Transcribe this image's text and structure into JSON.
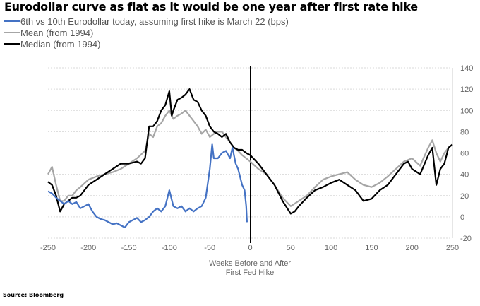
{
  "chart_data": {
    "type": "line",
    "title": "Eurodollar curve as flat as it would be one year after first rate hike",
    "xlabel": "Weeks Before and After\nFirst Fed Hike",
    "xlabel_lines": [
      "Weeks Before and After",
      "First Fed Hike"
    ],
    "ylabel": "",
    "xlim": [
      -250,
      250
    ],
    "ylim": [
      -20,
      140
    ],
    "xticks": [
      -250,
      -200,
      -150,
      -100,
      -50,
      0,
      50,
      100,
      150,
      200,
      250
    ],
    "yticks": [
      -20,
      0,
      20,
      40,
      60,
      80,
      100,
      120,
      140
    ],
    "grid": true,
    "legend_position": "top-left",
    "source": "Source:  Bloomberg",
    "series": [
      {
        "name": "6th vs 10th Eurodollar today, assuming first hike is March 22 (bps)",
        "color": "#4472c4",
        "x": [
          -250,
          -245,
          -240,
          -235,
          -230,
          -225,
          -220,
          -215,
          -210,
          -205,
          -200,
          -195,
          -190,
          -185,
          -180,
          -175,
          -170,
          -165,
          -160,
          -155,
          -150,
          -145,
          -140,
          -135,
          -130,
          -125,
          -120,
          -115,
          -110,
          -105,
          -100,
          -95,
          -90,
          -85,
          -80,
          -75,
          -70,
          -65,
          -60,
          -55,
          -50,
          -47,
          -45,
          -40,
          -35,
          -30,
          -25,
          -22,
          -18,
          -15,
          -10,
          -7,
          -5,
          -4
        ],
        "y": [
          24,
          22,
          18,
          15,
          12,
          15,
          12,
          14,
          8,
          10,
          12,
          5,
          0,
          -2,
          -3,
          -5,
          -7,
          -6,
          -8,
          -10,
          -5,
          -3,
          -1,
          -5,
          -3,
          0,
          5,
          8,
          5,
          10,
          25,
          10,
          8,
          10,
          5,
          8,
          5,
          8,
          10,
          18,
          45,
          68,
          55,
          55,
          60,
          62,
          55,
          65,
          50,
          45,
          30,
          25,
          10,
          -5
        ]
      },
      {
        "name": "Mean (from 1994)",
        "color": "#a6a6a6",
        "x": [
          -250,
          -245,
          -240,
          -235,
          -230,
          -225,
          -220,
          -215,
          -210,
          -200,
          -190,
          -180,
          -170,
          -160,
          -150,
          -140,
          -130,
          -125,
          -120,
          -115,
          -110,
          -105,
          -100,
          -95,
          -90,
          -85,
          -80,
          -75,
          -70,
          -65,
          -60,
          -55,
          -50,
          -45,
          -40,
          -35,
          -30,
          -25,
          -20,
          -15,
          -10,
          -5,
          0,
          10,
          20,
          30,
          40,
          50,
          60,
          70,
          80,
          90,
          100,
          110,
          120,
          130,
          140,
          150,
          160,
          170,
          180,
          190,
          200,
          210,
          220,
          225,
          230,
          235,
          240,
          245,
          250
        ],
        "y": [
          40,
          47,
          30,
          15,
          15,
          20,
          20,
          25,
          28,
          35,
          38,
          40,
          42,
          45,
          50,
          55,
          62,
          78,
          75,
          85,
          88,
          95,
          100,
          92,
          95,
          97,
          100,
          95,
          90,
          85,
          78,
          82,
          75,
          78,
          80,
          80,
          75,
          70,
          65,
          62,
          58,
          55,
          52,
          45,
          40,
          30,
          18,
          10,
          15,
          20,
          28,
          35,
          38,
          40,
          42,
          35,
          30,
          28,
          32,
          38,
          45,
          52,
          55,
          48,
          65,
          72,
          60,
          52,
          60,
          65,
          68
        ]
      },
      {
        "name": "Median (from 1994)",
        "color": "#000000",
        "x": [
          -250,
          -245,
          -240,
          -235,
          -230,
          -225,
          -220,
          -215,
          -210,
          -200,
          -190,
          -180,
          -170,
          -160,
          -150,
          -140,
          -135,
          -130,
          -125,
          -120,
          -115,
          -110,
          -105,
          -100,
          -97,
          -95,
          -90,
          -85,
          -80,
          -75,
          -70,
          -65,
          -60,
          -55,
          -50,
          -45,
          -40,
          -35,
          -30,
          -25,
          -20,
          -15,
          -10,
          -5,
          0,
          10,
          20,
          30,
          40,
          50,
          55,
          60,
          70,
          80,
          90,
          100,
          110,
          120,
          130,
          140,
          150,
          160,
          170,
          180,
          190,
          195,
          200,
          210,
          220,
          225,
          230,
          235,
          240,
          245,
          250
        ],
        "y": [
          33,
          30,
          20,
          5,
          12,
          15,
          18,
          18,
          20,
          30,
          35,
          40,
          45,
          50,
          50,
          52,
          50,
          55,
          85,
          85,
          90,
          100,
          105,
          118,
          95,
          100,
          110,
          112,
          115,
          120,
          110,
          108,
          100,
          95,
          85,
          80,
          78,
          75,
          78,
          70,
          65,
          63,
          63,
          60,
          58,
          50,
          40,
          30,
          15,
          3,
          5,
          10,
          18,
          25,
          28,
          32,
          35,
          30,
          25,
          15,
          17,
          25,
          30,
          40,
          50,
          52,
          45,
          40,
          58,
          65,
          30,
          45,
          50,
          65,
          68
        ]
      }
    ]
  }
}
